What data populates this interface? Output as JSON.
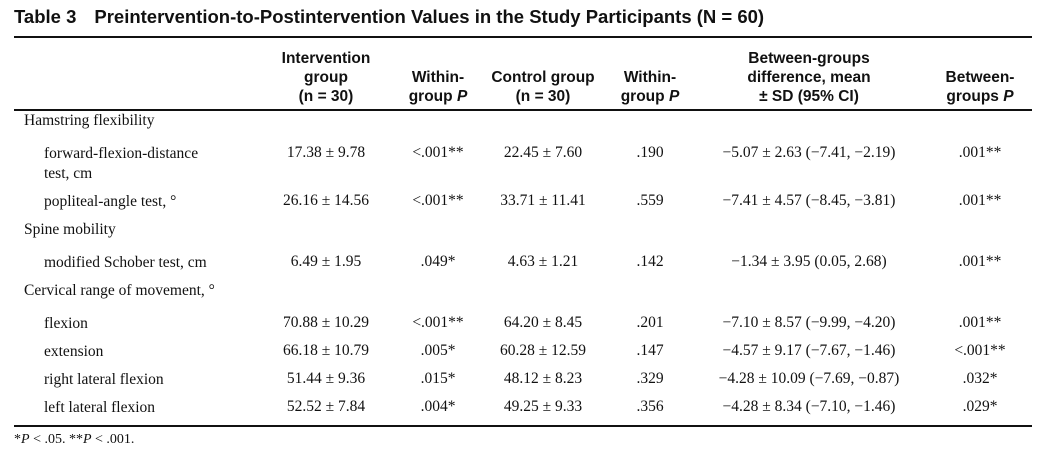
{
  "table": {
    "number": "Table 3",
    "title": "Preintervention-to-Postintervention Values in the Study Participants (N = 60)",
    "headers": {
      "intervention": [
        "Intervention",
        "group",
        "(n = 30)"
      ],
      "within_p_1": [
        "Within-",
        "group P"
      ],
      "control": [
        "Control group",
        "(n = 30)"
      ],
      "within_p_2": [
        "Within-",
        "group P"
      ],
      "between_diff": [
        "Between-groups",
        "difference, mean",
        "± SD (95% CI)"
      ],
      "between_p": [
        "Between-",
        "groups P"
      ]
    },
    "sections": [
      {
        "title": "Hamstring flexibility"
      },
      {
        "title": "Spine mobility"
      },
      {
        "title": "Cervical range of movement, °"
      }
    ],
    "rows": [
      {
        "label": [
          "forward-flexion-distance",
          "test, cm"
        ],
        "intervention": "17.38 ± 9.78",
        "within_p1": "<.001**",
        "control": "22.45 ± 7.60",
        "within_p2": ".190",
        "diff": "−5.07 ± 2.63 (−7.41, −2.19)",
        "between_p": ".001**"
      },
      {
        "label": [
          "popliteal-angle test, °"
        ],
        "intervention": "26.16 ± 14.56",
        "within_p1": "<.001**",
        "control": "33.71 ± 11.41",
        "within_p2": ".559",
        "diff": "−7.41 ± 4.57 (−8.45, −3.81)",
        "between_p": ".001**"
      },
      {
        "label": [
          "modified Schober test, cm"
        ],
        "intervention": "6.49 ± 1.95",
        "within_p1": ".049*",
        "control": "4.63 ± 1.21",
        "within_p2": ".142",
        "diff": "−1.34 ± 3.95 (0.05, 2.68)",
        "between_p": ".001**"
      },
      {
        "label": [
          "flexion"
        ],
        "intervention": "70.88 ± 10.29",
        "within_p1": "<.001**",
        "control": "64.20 ± 8.45",
        "within_p2": ".201",
        "diff": "−7.10 ± 8.57 (−9.99, −4.20)",
        "between_p": ".001**"
      },
      {
        "label": [
          "extension"
        ],
        "intervention": "66.18 ± 10.79",
        "within_p1": ".005*",
        "control": "60.28 ± 12.59",
        "within_p2": ".147",
        "diff": "−4.57 ± 9.17 (−7.67, −1.46)",
        "between_p": "<.001**"
      },
      {
        "label": [
          "right lateral flexion"
        ],
        "intervention": "51.44 ± 9.36",
        "within_p1": ".015*",
        "control": "48.12 ± 8.23",
        "within_p2": ".329",
        "diff": "−4.28 ± 10.09 (−7.69, −0.87)",
        "between_p": ".032*"
      },
      {
        "label": [
          "left lateral flexion"
        ],
        "intervention": "52.52 ± 7.84",
        "within_p1": ".004*",
        "control": "49.25 ± 9.33",
        "within_p2": ".356",
        "diff": "−4.28 ± 8.34 (−7.10, −1.46)",
        "between_p": ".029*"
      }
    ],
    "footnote": {
      "p1": "P",
      "t1": " < .05. **",
      "p2": "P",
      "t2": " < .001.",
      "star": "*"
    }
  }
}
